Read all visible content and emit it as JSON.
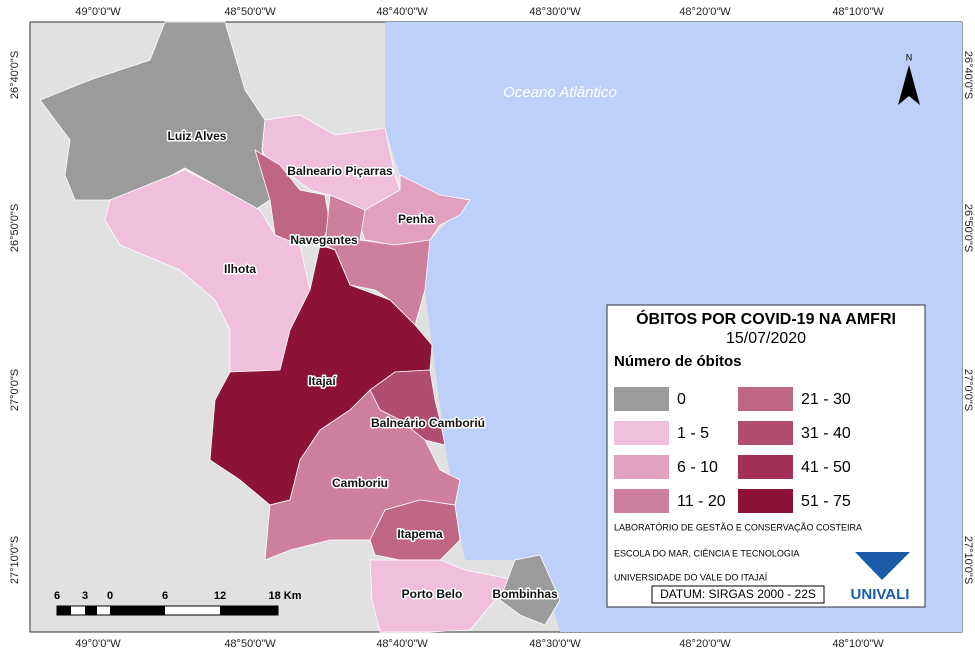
{
  "map": {
    "ocean_label": "Oceano Atlântico",
    "north": "N",
    "municipalities": [
      "Luiz Alves",
      "Balneario Piçarras",
      "Penha",
      "Navegantes",
      "Ilhota",
      "Itajaí",
      "Balneário Camboriú",
      "Camboriu",
      "Itapema",
      "Porto Belo",
      "Bombinhas"
    ],
    "top_labels": [
      "49°0'0\"W",
      "48°50'0\"W",
      "48°40'0\"W",
      "48°30'0\"W",
      "48°20'0\"W",
      "48°10'0\"W"
    ],
    "bottom_labels": [
      "49°0'0\"W",
      "48°50'0\"W",
      "48°40'0\"W",
      "48°30'0\"W",
      "48°20'0\"W",
      "48°10'0\"W"
    ],
    "left_labels": [
      "26°40'0\"S",
      "26°50'0\"S",
      "27°0'0\"S",
      "27°10'0\"S"
    ],
    "right_labels": [
      "26°40'0\"S",
      "26°50'0\"S",
      "27°0'0\"S",
      "27°10'0\"S"
    ],
    "scale_labels": [
      "6",
      "3",
      "0",
      "6",
      "12",
      "18 Km"
    ]
  },
  "legend": {
    "title": "ÓBITOS POR COVID-19 NA AMFRI",
    "date": "15/07/2020",
    "subtitle": "Número de óbitos",
    "classes": [
      "0",
      "1 - 5",
      "6 - 10",
      "11 - 20",
      "21 - 30",
      "31 - 40",
      "41 - 50",
      "51 - 75"
    ]
  },
  "credits": [
    "LABORATÓRIO DE GESTÃO E CONSERVAÇÃO COSTEIRA",
    "ESCOLA DO MAR, CIÊNCIA E TECNOLOGIA",
    "UNIVERSIDADE DO VALE DO ITAJAÍ"
  ],
  "datum": "DATUM: SIRGAS 2000 - 22S",
  "logo": "UNIVALI"
}
